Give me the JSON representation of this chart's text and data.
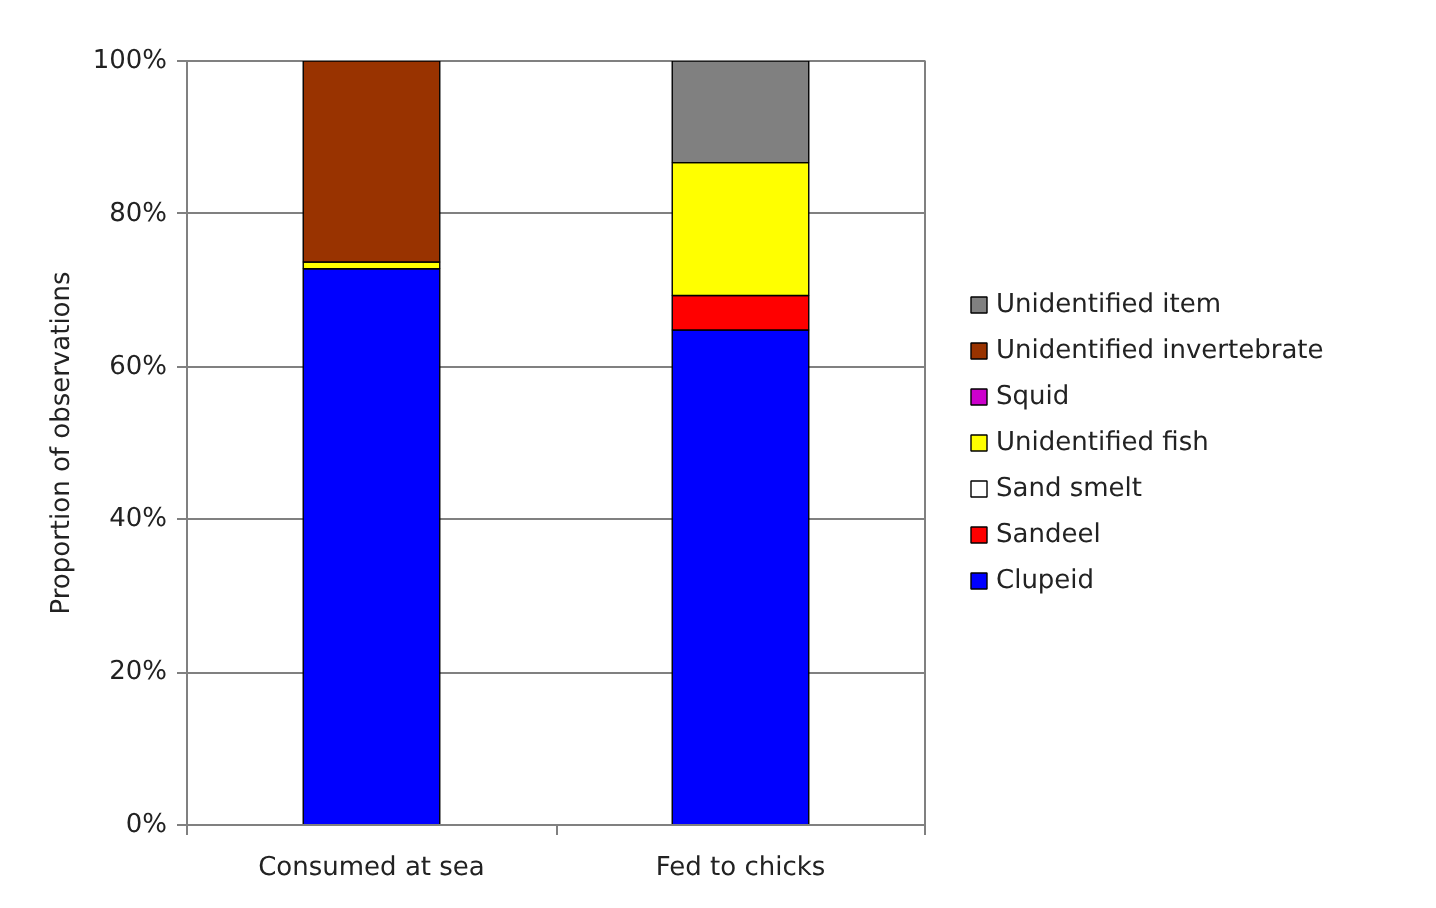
{
  "chart_data": {
    "type": "bar",
    "stacked": true,
    "ylabel": "Proportion of observations",
    "categories": [
      "Consumed at sea",
      "Fed to chicks"
    ],
    "series": [
      {
        "name": "Clupeid",
        "color": "#0000ff",
        "values": [
          72.8,
          64.8
        ]
      },
      {
        "name": "Sandeel",
        "color": "#ff0000",
        "values": [
          0,
          4.5
        ]
      },
      {
        "name": "Sand smelt",
        "color": "#ffffff",
        "values": [
          0,
          0
        ]
      },
      {
        "name": "Unidentified fish",
        "color": "#ffff00",
        "values": [
          0.9,
          17.4
        ]
      },
      {
        "name": "Squid",
        "color": "#cc00cc",
        "values": [
          0,
          0
        ]
      },
      {
        "name": "Unidentified invertebrate",
        "color": "#993300",
        "values": [
          26.3,
          0
        ]
      },
      {
        "name": "Unidentified item",
        "color": "#808080",
        "values": [
          0,
          13.3
        ]
      }
    ],
    "ylim": [
      0,
      100
    ],
    "yticks": [
      {
        "value": 0,
        "label": "0%"
      },
      {
        "value": 20,
        "label": "20%"
      },
      {
        "value": 40,
        "label": "40%"
      },
      {
        "value": 60,
        "label": "60%"
      },
      {
        "value": 80,
        "label": "80%"
      },
      {
        "value": 100,
        "label": "100%"
      }
    ],
    "grid": "y",
    "legend": "right"
  }
}
